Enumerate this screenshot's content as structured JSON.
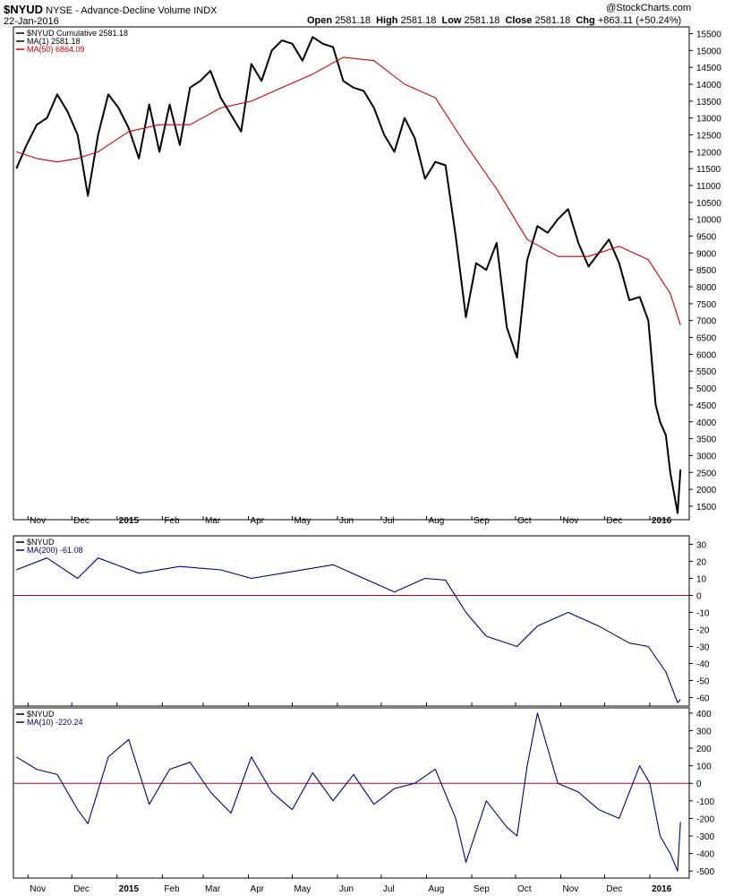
{
  "header": {
    "symbol": "$NYUD",
    "description": "NYSE - Advance-Decline Volume INDX",
    "date": "22-Jan-2016",
    "open_label": "Open",
    "open": "2581.18",
    "high_label": "High",
    "high": "2581.18",
    "low_label": "Low",
    "low": "2581.18",
    "close_label": "Close",
    "close": "2581.18",
    "chg_label": "Chg",
    "chg": "+863.11 (+50.24%)",
    "watermark": "@StockCharts.com"
  },
  "x_axis": {
    "labels": [
      "Nov",
      "Dec",
      "2015",
      "Feb",
      "Mar",
      "Apr",
      "May",
      "Jun",
      "Jul",
      "Aug",
      "Sep",
      "Oct",
      "Nov",
      "Dec",
      "2016"
    ],
    "bold": [
      false,
      false,
      true,
      false,
      false,
      false,
      false,
      false,
      false,
      false,
      false,
      false,
      false,
      false,
      true
    ]
  },
  "chart_data": [
    {
      "type": "line",
      "legend": [
        "$NYUD Cumulative 2581.18",
        "MA(1) 2581.18",
        "MA(50) 6864.09"
      ],
      "ylim": [
        1100,
        15700
      ],
      "y_ticks": [
        1500,
        2000,
        2500,
        3000,
        3500,
        4000,
        4500,
        5000,
        5500,
        6000,
        6500,
        7000,
        7500,
        8000,
        8500,
        9000,
        9500,
        10000,
        10500,
        11000,
        11500,
        12000,
        12500,
        13000,
        13500,
        14000,
        14500,
        15000,
        15500
      ],
      "x_months": [
        "2014-11",
        "2014-12",
        "2015-01",
        "2015-02",
        "2015-03",
        "2015-04",
        "2015-05",
        "2015-06",
        "2015-07",
        "2015-08",
        "2015-09",
        "2015-10",
        "2015-11",
        "2015-12",
        "2016-01"
      ],
      "series": [
        {
          "name": "$NYUD Cumulative",
          "color": "#000000",
          "points": [
            [
              "2014-10-24",
              11500
            ],
            [
              "2014-10-31",
              12200
            ],
            [
              "2014-11-07",
              12800
            ],
            [
              "2014-11-14",
              13000
            ],
            [
              "2014-11-21",
              13700
            ],
            [
              "2014-11-28",
              13200
            ],
            [
              "2014-12-05",
              12500
            ],
            [
              "2014-12-12",
              10700
            ],
            [
              "2014-12-19",
              12500
            ],
            [
              "2014-12-26",
              13700
            ],
            [
              "2015-01-02",
              13300
            ],
            [
              "2015-01-09",
              12700
            ],
            [
              "2015-01-16",
              11800
            ],
            [
              "2015-01-23",
              13400
            ],
            [
              "2015-01-30",
              12000
            ],
            [
              "2015-02-06",
              13400
            ],
            [
              "2015-02-13",
              12200
            ],
            [
              "2015-02-20",
              13900
            ],
            [
              "2015-02-27",
              14100
            ],
            [
              "2015-03-06",
              14400
            ],
            [
              "2015-03-13",
              13600
            ],
            [
              "2015-03-20",
              13100
            ],
            [
              "2015-03-27",
              12600
            ],
            [
              "2015-04-03",
              14600
            ],
            [
              "2015-04-10",
              14100
            ],
            [
              "2015-04-17",
              15000
            ],
            [
              "2015-04-24",
              15300
            ],
            [
              "2015-05-01",
              15200
            ],
            [
              "2015-05-08",
              14700
            ],
            [
              "2015-05-15",
              15400
            ],
            [
              "2015-05-22",
              15200
            ],
            [
              "2015-05-29",
              15100
            ],
            [
              "2015-06-05",
              14100
            ],
            [
              "2015-06-12",
              13900
            ],
            [
              "2015-06-19",
              13800
            ],
            [
              "2015-06-26",
              13300
            ],
            [
              "2015-07-03",
              12500
            ],
            [
              "2015-07-10",
              12000
            ],
            [
              "2015-07-17",
              13000
            ],
            [
              "2015-07-24",
              12400
            ],
            [
              "2015-07-31",
              11200
            ],
            [
              "2015-08-07",
              11700
            ],
            [
              "2015-08-14",
              11600
            ],
            [
              "2015-08-21",
              9500
            ],
            [
              "2015-08-28",
              7100
            ],
            [
              "2015-09-04",
              8700
            ],
            [
              "2015-09-11",
              8500
            ],
            [
              "2015-09-18",
              9300
            ],
            [
              "2015-09-25",
              6800
            ],
            [
              "2015-10-02",
              5900
            ],
            [
              "2015-10-09",
              8800
            ],
            [
              "2015-10-16",
              9800
            ],
            [
              "2015-10-23",
              9600
            ],
            [
              "2015-10-30",
              10000
            ],
            [
              "2015-11-06",
              10300
            ],
            [
              "2015-11-13",
              9300
            ],
            [
              "2015-11-20",
              8600
            ],
            [
              "2015-11-27",
              9000
            ],
            [
              "2015-12-04",
              9400
            ],
            [
              "2015-12-11",
              8700
            ],
            [
              "2015-12-18",
              7600
            ],
            [
              "2015-12-25",
              7700
            ],
            [
              "2015-12-31",
              7000
            ],
            [
              "2016-01-05",
              4500
            ],
            [
              "2016-01-08",
              4000
            ],
            [
              "2016-01-12",
              3600
            ],
            [
              "2016-01-15",
              2500
            ],
            [
              "2016-01-20",
              1300
            ],
            [
              "2016-01-22",
              2581.18
            ]
          ]
        },
        {
          "name": "MA(50)",
          "color": "#cc0000",
          "points": [
            [
              "2014-10-24",
              12000
            ],
            [
              "2014-11-07",
              11800
            ],
            [
              "2014-11-21",
              11700
            ],
            [
              "2014-12-05",
              11800
            ],
            [
              "2014-12-19",
              12000
            ],
            [
              "2015-01-09",
              12600
            ],
            [
              "2015-01-30",
              12800
            ],
            [
              "2015-02-20",
              12800
            ],
            [
              "2015-03-13",
              13300
            ],
            [
              "2015-04-03",
              13500
            ],
            [
              "2015-04-24",
              13900
            ],
            [
              "2015-05-15",
              14300
            ],
            [
              "2015-06-05",
              14800
            ],
            [
              "2015-06-26",
              14700
            ],
            [
              "2015-07-17",
              14000
            ],
            [
              "2015-08-07",
              13600
            ],
            [
              "2015-08-28",
              12200
            ],
            [
              "2015-09-18",
              10900
            ],
            [
              "2015-10-09",
              9400
            ],
            [
              "2015-10-30",
              8900
            ],
            [
              "2015-11-20",
              8900
            ],
            [
              "2015-12-11",
              9200
            ],
            [
              "2015-12-31",
              8800
            ],
            [
              "2016-01-15",
              7800
            ],
            [
              "2016-01-22",
              6864.09
            ]
          ]
        }
      ]
    },
    {
      "type": "line",
      "legend": [
        "$NYUD",
        "MA(200) -61.08"
      ],
      "ylim": [
        -65,
        35
      ],
      "y_ticks": [
        30,
        20,
        10,
        0,
        -10,
        -20,
        -30,
        -40,
        -50,
        -60
      ],
      "reference_line": 0,
      "series": [
        {
          "name": "MA(200)",
          "color": "#000080",
          "points": [
            [
              "2014-10-24",
              15
            ],
            [
              "2014-11-14",
              22
            ],
            [
              "2014-12-05",
              10
            ],
            [
              "2014-12-19",
              22
            ],
            [
              "2015-01-16",
              13
            ],
            [
              "2015-02-13",
              17
            ],
            [
              "2015-03-13",
              15
            ],
            [
              "2015-04-03",
              10
            ],
            [
              "2015-05-01",
              14
            ],
            [
              "2015-05-29",
              18
            ],
            [
              "2015-06-19",
              10
            ],
            [
              "2015-07-10",
              2
            ],
            [
              "2015-07-31",
              10
            ],
            [
              "2015-08-14",
              9
            ],
            [
              "2015-08-28",
              -10
            ],
            [
              "2015-09-11",
              -24
            ],
            [
              "2015-10-02",
              -30
            ],
            [
              "2015-10-16",
              -18
            ],
            [
              "2015-11-06",
              -10
            ],
            [
              "2015-11-27",
              -18
            ],
            [
              "2015-12-18",
              -28
            ],
            [
              "2015-12-31",
              -30
            ],
            [
              "2016-01-12",
              -45
            ],
            [
              "2016-01-20",
              -63
            ],
            [
              "2016-01-22",
              -61.08
            ]
          ]
        }
      ]
    },
    {
      "type": "line",
      "legend": [
        "$NYUD",
        "MA(10) -220.24"
      ],
      "ylim": [
        -540,
        430
      ],
      "y_ticks": [
        400,
        300,
        200,
        100,
        0,
        -100,
        -200,
        -300,
        -400,
        -500
      ],
      "reference_line": 0,
      "series": [
        {
          "name": "MA(10)",
          "color": "#000080",
          "points": [
            [
              "2014-10-24",
              150
            ],
            [
              "2014-11-07",
              80
            ],
            [
              "2014-11-21",
              50
            ],
            [
              "2014-12-05",
              -150
            ],
            [
              "2014-12-12",
              -230
            ],
            [
              "2014-12-26",
              150
            ],
            [
              "2015-01-09",
              250
            ],
            [
              "2015-01-23",
              -120
            ],
            [
              "2015-02-06",
              80
            ],
            [
              "2015-02-20",
              120
            ],
            [
              "2015-03-06",
              -50
            ],
            [
              "2015-03-20",
              -170
            ],
            [
              "2015-04-03",
              150
            ],
            [
              "2015-04-17",
              -50
            ],
            [
              "2015-05-01",
              -150
            ],
            [
              "2015-05-15",
              60
            ],
            [
              "2015-05-29",
              -100
            ],
            [
              "2015-06-12",
              50
            ],
            [
              "2015-06-26",
              -120
            ],
            [
              "2015-07-10",
              -30
            ],
            [
              "2015-07-24",
              0
            ],
            [
              "2015-08-07",
              80
            ],
            [
              "2015-08-21",
              -200
            ],
            [
              "2015-08-28",
              -450
            ],
            [
              "2015-09-11",
              -100
            ],
            [
              "2015-09-25",
              -250
            ],
            [
              "2015-10-02",
              -300
            ],
            [
              "2015-10-09",
              100
            ],
            [
              "2015-10-16",
              400
            ],
            [
              "2015-10-23",
              200
            ],
            [
              "2015-10-30",
              0
            ],
            [
              "2015-11-13",
              -50
            ],
            [
              "2015-11-27",
              -150
            ],
            [
              "2015-12-11",
              -200
            ],
            [
              "2015-12-25",
              100
            ],
            [
              "2016-01-01",
              0
            ],
            [
              "2016-01-08",
              -300
            ],
            [
              "2016-01-15",
              -400
            ],
            [
              "2016-01-20",
              -500
            ],
            [
              "2016-01-22",
              -220.24
            ]
          ]
        }
      ]
    }
  ]
}
